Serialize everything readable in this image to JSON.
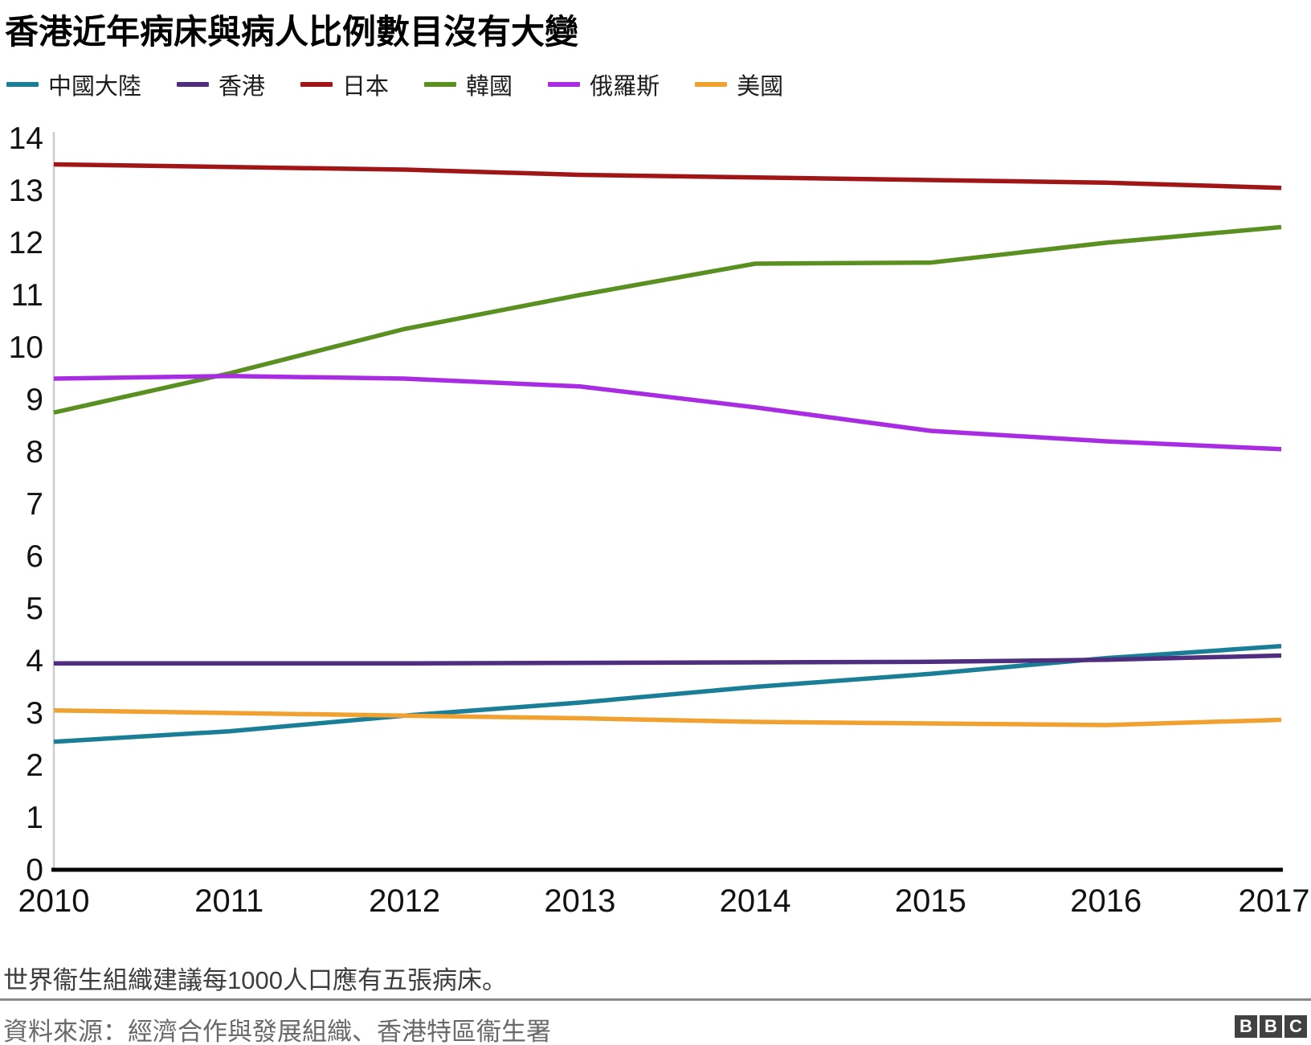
{
  "title": "香港近年病床與病人比例數目沒有大變",
  "note": "世界衞生組織建議每1000人口應有五張病床。",
  "source": "資料來源：經濟合作與發展組織、香港特區衞生署",
  "logo": {
    "letters": [
      "B",
      "B",
      "C"
    ]
  },
  "chart_data": {
    "type": "line",
    "title": "香港近年病床與病人比例數目沒有大變",
    "x": [
      2010,
      2011,
      2012,
      2013,
      2014,
      2015,
      2016,
      2017
    ],
    "ylim": [
      0,
      14
    ],
    "ytick_interval": 1,
    "grid": false,
    "legend_position": "top-left",
    "axis_color": "#000000",
    "yaxis_line_color": "#cccccc",
    "series": [
      {
        "id": "mainland-china",
        "label": "中國大陸",
        "color": "#1a7f96",
        "values": [
          2.45,
          2.65,
          2.95,
          3.2,
          3.5,
          3.75,
          4.05,
          4.28
        ]
      },
      {
        "id": "hong-kong",
        "label": "香港",
        "color": "#4f2d7f",
        "values": [
          3.95,
          3.95,
          3.95,
          3.96,
          3.97,
          3.98,
          4.02,
          4.1
        ]
      },
      {
        "id": "japan",
        "label": "日本",
        "color": "#a01515",
        "values": [
          13.5,
          13.45,
          13.4,
          13.3,
          13.25,
          13.2,
          13.15,
          13.05
        ]
      },
      {
        "id": "south-korea",
        "label": "韓國",
        "color": "#5a8f22",
        "values": [
          8.75,
          9.5,
          10.35,
          11.0,
          11.6,
          11.62,
          12.0,
          12.3
        ]
      },
      {
        "id": "russia",
        "label": "俄羅斯",
        "color": "#a82ce2",
        "values": [
          9.4,
          9.45,
          9.4,
          9.25,
          8.85,
          8.4,
          8.2,
          8.05
        ]
      },
      {
        "id": "usa",
        "label": "美國",
        "color": "#f0a12f",
        "values": [
          3.05,
          3.0,
          2.95,
          2.9,
          2.83,
          2.8,
          2.77,
          2.87
        ]
      }
    ]
  }
}
